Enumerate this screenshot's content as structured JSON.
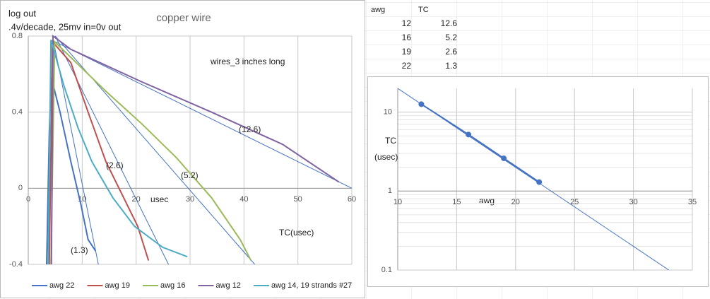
{
  "chart_data": [
    {
      "type": "line",
      "title": "copper wire",
      "ylabel": "log out",
      "subtitle": ".4v/decade, 25mv in=0v out",
      "xlabel": "usec",
      "annotations": [
        "wires_3 inches long",
        "(12.6)",
        "(5.2)",
        "(2.6)",
        "(1.3)",
        "TC(usec)"
      ],
      "xlim": [
        0,
        60
      ],
      "xticks": [
        0,
        10,
        20,
        30,
        40,
        50,
        60
      ],
      "ylim": [
        -0.4,
        0.8
      ],
      "yticks": [
        -0.4,
        0,
        0.4,
        0.8
      ],
      "grid": true,
      "series": [
        {
          "name": "awg 22",
          "color": "#4472c4",
          "x": [
            3.4,
            3.9,
            4.3,
            5.9,
            7.9,
            9.8,
            11.1,
            12.5
          ],
          "values": [
            -0.4,
            0.3,
            0.58,
            0.4,
            0.14,
            -0.09,
            -0.27,
            -0.33
          ]
        },
        {
          "name": "awg 19",
          "color": "#c0504d",
          "x": [
            3.9,
            4.5,
            7.9,
            11.1,
            14.4,
            17.7,
            20.3,
            22.3
          ],
          "values": [
            -0.4,
            0.77,
            0.66,
            0.4,
            0.14,
            -0.05,
            -0.2,
            -0.38
          ]
        },
        {
          "name": "awg 16",
          "color": "#9bbb59",
          "x": [
            4.2,
            4.9,
            14.4,
            21,
            27.5,
            34,
            39.3,
            41.3
          ],
          "values": [
            -0.4,
            0.77,
            0.51,
            0.34,
            0.16,
            -0.05,
            -0.27,
            -0.38
          ]
        },
        {
          "name": "awg 12",
          "color": "#8064a2",
          "x": [
            4.3,
            4.6,
            7.9,
            21,
            34,
            47.2,
            57.6
          ],
          "values": [
            -0.4,
            0.8,
            0.73,
            0.56,
            0.4,
            0.23,
            0.033
          ]
        },
        {
          "name": "awg 14, 19 strands #27",
          "color": "#4bacc6",
          "x": [
            3.7,
            4.2,
            6.6,
            9.2,
            11.8,
            15.7,
            19.7,
            24.9,
            29.5
          ],
          "values": [
            -0.4,
            0.78,
            0.54,
            0.32,
            0.14,
            -0.05,
            -0.2,
            -0.31,
            -0.36
          ]
        }
      ],
      "trendlines": [
        {
          "color": "#4472c4",
          "x": [
            5,
            60
          ],
          "values": [
            0.77,
            0
          ]
        },
        {
          "color": "#4472c4",
          "x": [
            5,
            42
          ],
          "values": [
            0.8,
            -0.4
          ]
        },
        {
          "color": "#4472c4",
          "x": [
            5,
            26
          ],
          "values": [
            0.8,
            -0.4
          ]
        },
        {
          "color": "#4472c4",
          "x": [
            4.5,
            13
          ],
          "values": [
            0.8,
            -0.4
          ]
        }
      ],
      "legend": "bottom"
    },
    {
      "type": "line",
      "ylabel_lines": [
        "TC",
        "(usec)"
      ],
      "xlabel": "awg",
      "xlim": [
        10,
        35
      ],
      "xticks": [
        10,
        15,
        20,
        25,
        30,
        35
      ],
      "ylim": [
        0.1,
        20
      ],
      "yticks": [
        0.1,
        1,
        10
      ],
      "log_y": true,
      "grid": true,
      "minor_grid": true,
      "xaxis_crosses": 1,
      "series": [
        {
          "color": "#4472c4",
          "x": [
            12,
            16,
            19,
            22
          ],
          "values": [
            12.6,
            5.2,
            2.6,
            1.3
          ]
        }
      ],
      "trendlines": [
        {
          "color": "#4472c4",
          "x": [
            10,
            33
          ],
          "values": [
            20,
            0.1
          ]
        }
      ]
    }
  ],
  "table": {
    "header": [
      "awg",
      "TC"
    ],
    "rows": [
      [
        12,
        12.6
      ],
      [
        16,
        5.2
      ],
      [
        19,
        2.6
      ],
      [
        22,
        1.3
      ]
    ]
  }
}
